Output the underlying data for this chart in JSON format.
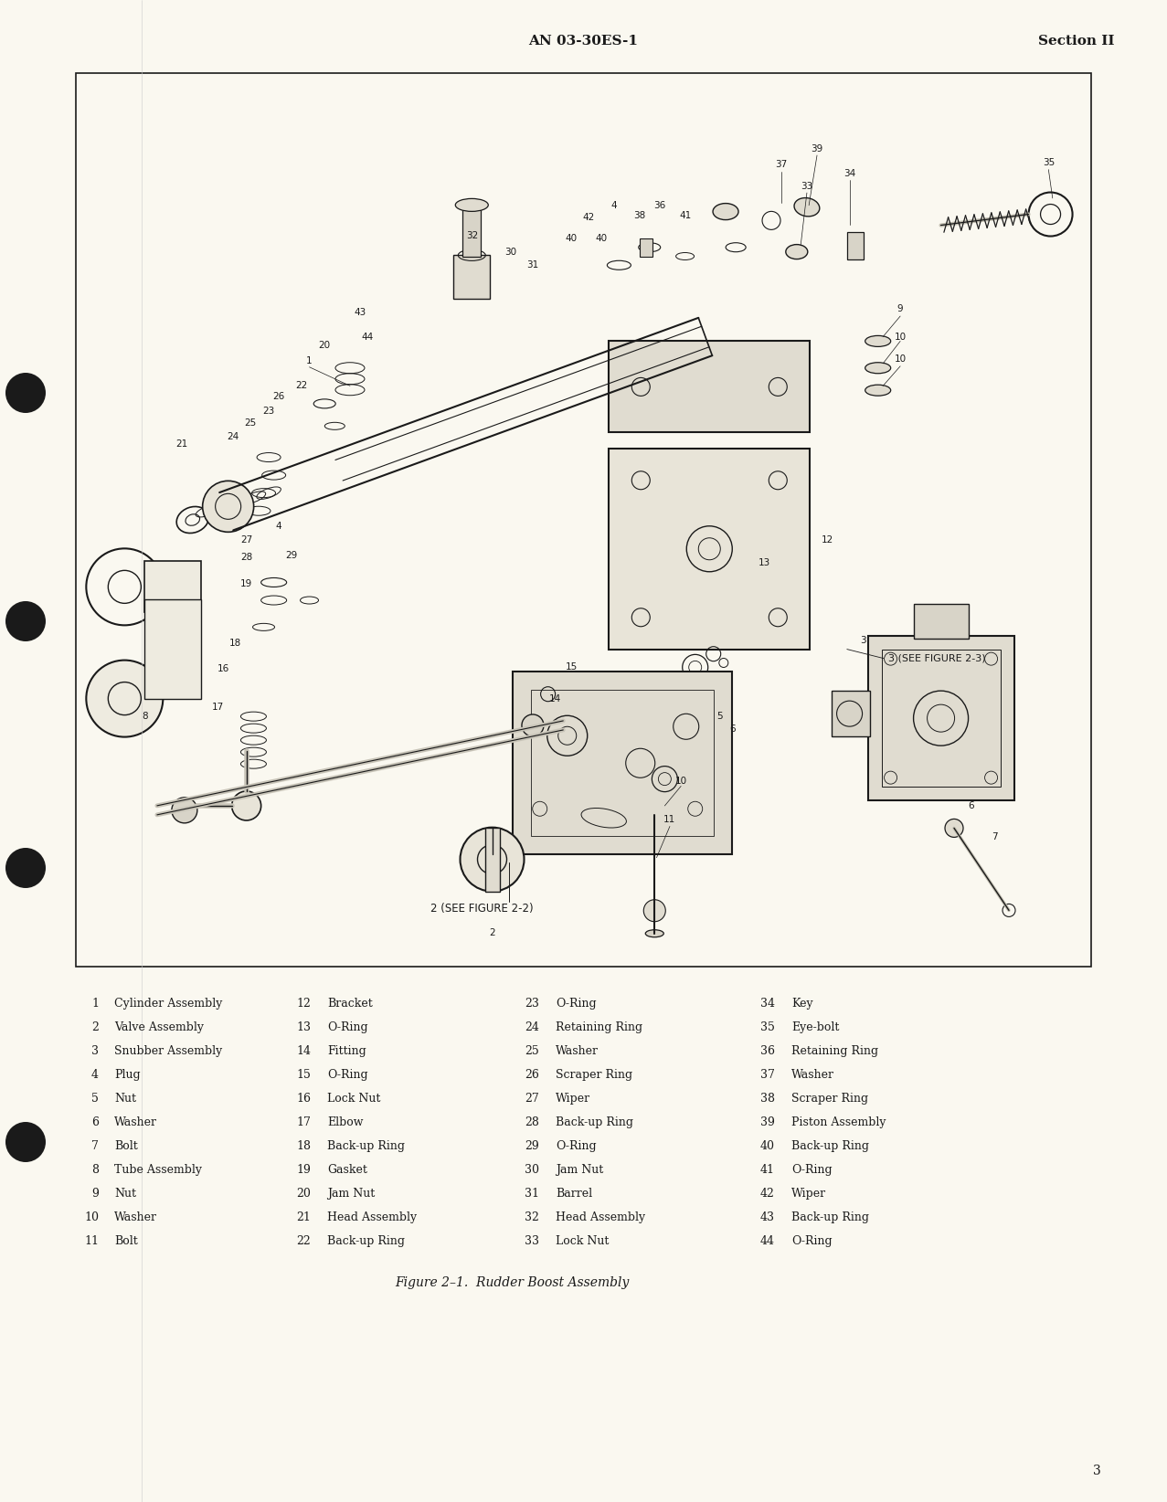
{
  "page_background": "#faf8f0",
  "header_center": "AN 03-30ES-1",
  "header_right": "Section II",
  "figure_caption": "Figure 2–1.  Rudder Boost Assembly",
  "page_number": "3",
  "parts_list": [
    [
      1,
      "Cylinder Assembly",
      12,
      "Bracket",
      23,
      "O-Ring",
      34,
      "Key"
    ],
    [
      2,
      "Valve Assembly",
      13,
      "O-Ring",
      24,
      "Retaining Ring",
      35,
      "Eye-bolt"
    ],
    [
      3,
      "Snubber Assembly",
      14,
      "Fitting",
      25,
      "Washer",
      36,
      "Retaining Ring"
    ],
    [
      4,
      "Plug",
      15,
      "O-Ring",
      26,
      "Scraper Ring",
      37,
      "Washer"
    ],
    [
      5,
      "Nut",
      16,
      "Lock Nut",
      27,
      "Wiper",
      38,
      "Scraper Ring"
    ],
    [
      6,
      "Washer",
      17,
      "Elbow",
      28,
      "Back-up Ring",
      39,
      "Piston Assembly"
    ],
    [
      7,
      "Bolt",
      18,
      "Back-up Ring",
      29,
      "O-Ring",
      40,
      "Back-up Ring"
    ],
    [
      8,
      "Tube Assembly",
      19,
      "Gasket",
      30,
      "Jam Nut",
      41,
      "O-Ring"
    ],
    [
      9,
      "Nut",
      20,
      "Jam Nut",
      31,
      "Barrel",
      42,
      "Wiper"
    ],
    [
      10,
      "Washer",
      21,
      "Head Assembly",
      32,
      "Head Assembly",
      43,
      "Back-up Ring"
    ],
    [
      11,
      "Bolt",
      22,
      "Back-up Ring",
      33,
      "Lock Nut",
      44,
      "O-Ring"
    ]
  ],
  "text_color": "#1a1a1a",
  "box_color": "#1a1a1a"
}
